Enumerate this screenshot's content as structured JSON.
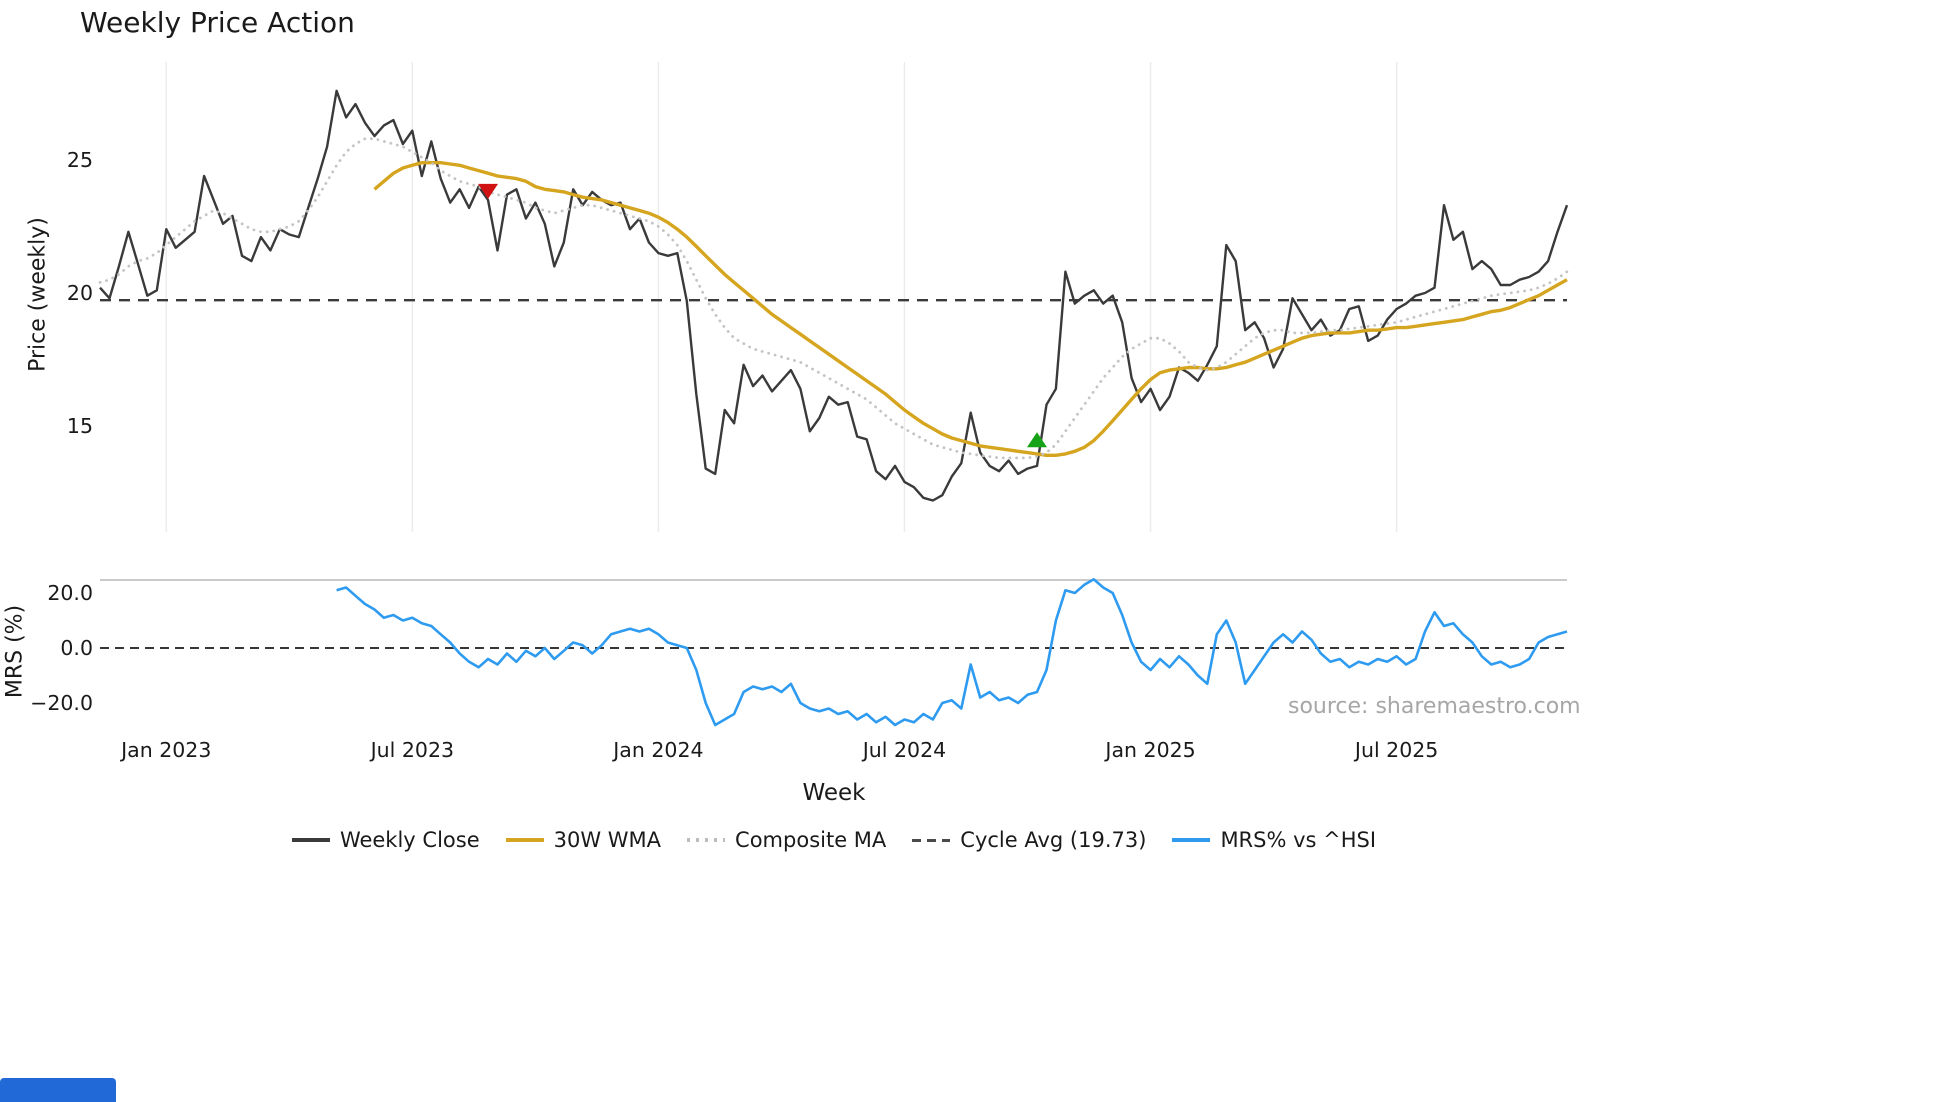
{
  "title": "Weekly Price Action",
  "source": "source: sharemaestro.com",
  "xaxis": {
    "label": "Week",
    "ticks": [
      {
        "week": 7,
        "label": "Jan 2023"
      },
      {
        "week": 33,
        "label": "Jul 2023"
      },
      {
        "week": 59,
        "label": "Jan 2024"
      },
      {
        "week": 85,
        "label": "Jul 2024"
      },
      {
        "week": 111,
        "label": "Jan 2025"
      },
      {
        "week": 137,
        "label": "Jul 2025"
      }
    ]
  },
  "legend": {
    "items": [
      {
        "label": "Weekly Close",
        "swatch": "line",
        "color": "#3a3a3a"
      },
      {
        "label": "30W WMA",
        "swatch": "line",
        "color": "#d6a51f"
      },
      {
        "label": "Composite MA",
        "swatch": "dotted",
        "color": "#bdbdbd"
      },
      {
        "label": "Cycle Avg (19.73)",
        "swatch": "dashed",
        "color": "#4a4a4a"
      },
      {
        "label": "MRS% vs ^HSI",
        "swatch": "line",
        "color": "#2e9bf0"
      }
    ]
  },
  "ui": {
    "bottom_left_fragment_color": "#2169d6",
    "gridline_color": "#ebebeb"
  },
  "chart_data": {
    "type": "line",
    "title": "Weekly Price Action",
    "x_unit": "week_index",
    "n_weeks": 156,
    "panels": [
      {
        "name": "price",
        "ylabel": "Price (weekly)",
        "ylim": [
          11.3,
          28.8
        ],
        "yticks": [
          {
            "value": 25,
            "label": "25"
          },
          {
            "value": 20,
            "label": "20"
          },
          {
            "value": 15,
            "label": "15"
          }
        ],
        "reference_lines": [
          {
            "name": "Cycle Avg (19.73)",
            "value": 19.73,
            "style": "dashed",
            "color": "#3a3a3a",
            "width": 2.4,
            "dash": "11 8"
          }
        ],
        "series": [
          {
            "name": "Weekly Close",
            "start_week": 0,
            "color": "#3a3a3a",
            "style": "solid",
            "width": 2.4,
            "values": [
              20.2,
              19.8,
              21.0,
              22.3,
              21.1,
              19.9,
              20.1,
              22.4,
              21.7,
              22.0,
              22.3,
              24.4,
              23.5,
              22.6,
              22.9,
              21.4,
              21.2,
              22.1,
              21.6,
              22.4,
              22.2,
              22.1,
              23.2,
              24.3,
              25.5,
              27.6,
              26.6,
              27.1,
              26.4,
              25.9,
              26.3,
              26.5,
              25.6,
              26.1,
              24.4,
              25.7,
              24.3,
              23.4,
              23.9,
              23.2,
              24.0,
              23.5,
              21.6,
              23.7,
              23.9,
              22.8,
              23.4,
              22.6,
              21.0,
              21.9,
              23.9,
              23.3,
              23.8,
              23.5,
              23.3,
              23.4,
              22.4,
              22.8,
              21.9,
              21.5,
              21.4,
              21.5,
              19.7,
              16.2,
              13.4,
              13.2,
              15.6,
              15.1,
              17.3,
              16.5,
              16.9,
              16.3,
              16.7,
              17.1,
              16.4,
              14.8,
              15.3,
              16.1,
              15.8,
              15.9,
              14.6,
              14.5,
              13.3,
              13.0,
              13.5,
              12.9,
              12.7,
              12.3,
              12.2,
              12.4,
              13.1,
              13.6,
              15.5,
              14.0,
              13.5,
              13.3,
              13.7,
              13.2,
              13.4,
              13.5,
              15.8,
              16.4,
              20.8,
              19.6,
              19.9,
              20.1,
              19.6,
              19.9,
              18.9,
              16.8,
              15.9,
              16.4,
              15.6,
              16.1,
              17.2,
              17.0,
              16.7,
              17.3,
              18.0,
              21.8,
              21.2,
              18.6,
              18.9,
              18.3,
              17.2,
              17.9,
              19.8,
              19.2,
              18.6,
              19.0,
              18.4,
              18.6,
              19.4,
              19.5,
              18.2,
              18.4,
              19.0,
              19.4,
              19.6,
              19.9,
              20.0,
              20.2,
              23.3,
              22.0,
              22.3,
              20.9,
              21.2,
              20.9,
              20.3,
              20.3,
              20.5,
              20.6,
              20.8,
              21.2,
              22.3,
              23.3
            ]
          },
          {
            "name": "30W WMA",
            "start_week": 29,
            "color": "#d6a51f",
            "style": "solid",
            "width": 3.4,
            "values": [
              23.9,
              24.2,
              24.5,
              24.7,
              24.8,
              24.9,
              24.9,
              24.9,
              24.85,
              24.8,
              24.7,
              24.6,
              24.5,
              24.4,
              24.35,
              24.3,
              24.2,
              24.0,
              23.9,
              23.85,
              23.8,
              23.7,
              23.6,
              23.55,
              23.5,
              23.4,
              23.3,
              23.2,
              23.1,
              23.0,
              22.85,
              22.65,
              22.4,
              22.1,
              21.75,
              21.4,
              21.05,
              20.7,
              20.4,
              20.1,
              19.8,
              19.5,
              19.2,
              18.95,
              18.7,
              18.45,
              18.2,
              17.95,
              17.7,
              17.45,
              17.2,
              16.95,
              16.7,
              16.45,
              16.2,
              15.9,
              15.6,
              15.35,
              15.1,
              14.9,
              14.7,
              14.55,
              14.45,
              14.35,
              14.25,
              14.2,
              14.15,
              14.1,
              14.05,
              14.0,
              13.95,
              13.9,
              13.9,
              13.95,
              14.05,
              14.2,
              14.45,
              14.8,
              15.2,
              15.6,
              16.0,
              16.4,
              16.75,
              17.0,
              17.1,
              17.15,
              17.2,
              17.2,
              17.15,
              17.15,
              17.2,
              17.3,
              17.4,
              17.55,
              17.7,
              17.85,
              18.0,
              18.15,
              18.3,
              18.4,
              18.45,
              18.5,
              18.5,
              18.5,
              18.55,
              18.6,
              18.6,
              18.65,
              18.7,
              18.7,
              18.75,
              18.8,
              18.85,
              18.9,
              18.95,
              19.0,
              19.1,
              19.2,
              19.3,
              19.35,
              19.45,
              19.6,
              19.75,
              19.9,
              20.1,
              20.3,
              20.5
            ]
          },
          {
            "name": "Composite MA",
            "start_week": 0,
            "color": "#c4c4c4",
            "style": "dotted",
            "width": 2.8,
            "values": [
              20.4,
              20.5,
              20.7,
              21.0,
              21.2,
              21.3,
              21.5,
              21.8,
              22.1,
              22.4,
              22.7,
              22.9,
              23.1,
              23.0,
              22.8,
              22.6,
              22.4,
              22.3,
              22.3,
              22.4,
              22.5,
              22.7,
              23.1,
              23.6,
              24.2,
              24.8,
              25.3,
              25.6,
              25.8,
              25.8,
              25.7,
              25.6,
              25.5,
              25.3,
              25.1,
              24.9,
              24.6,
              24.4,
              24.2,
              24.1,
              24.0,
              23.8,
              23.7,
              23.6,
              23.5,
              23.4,
              23.2,
              23.1,
              23.0,
              23.1,
              23.2,
              23.3,
              23.3,
              23.2,
              23.1,
              23.0,
              22.9,
              22.8,
              22.7,
              22.5,
              22.2,
              21.8,
              21.2,
              20.5,
              19.8,
              19.2,
              18.7,
              18.3,
              18.1,
              17.9,
              17.8,
              17.7,
              17.6,
              17.5,
              17.4,
              17.2,
              17.0,
              16.8,
              16.6,
              16.4,
              16.2,
              16.0,
              15.7,
              15.4,
              15.1,
              14.9,
              14.7,
              14.5,
              14.3,
              14.2,
              14.1,
              14.0,
              13.95,
              13.9,
              13.85,
              13.8,
              13.8,
              13.8,
              13.8,
              13.85,
              14.0,
              14.3,
              14.8,
              15.3,
              15.8,
              16.3,
              16.8,
              17.2,
              17.6,
              17.9,
              18.1,
              18.3,
              18.3,
              18.1,
              17.8,
              17.4,
              17.2,
              17.1,
              17.2,
              17.4,
              17.7,
              18.0,
              18.3,
              18.5,
              18.6,
              18.6,
              18.5,
              18.5,
              18.5,
              18.55,
              18.6,
              18.6,
              18.65,
              18.7,
              18.75,
              18.8,
              18.85,
              18.9,
              19.0,
              19.1,
              19.2,
              19.3,
              19.4,
              19.5,
              19.6,
              19.7,
              19.8,
              19.9,
              19.95,
              20.0,
              20.05,
              20.1,
              20.2,
              20.35,
              20.55,
              20.8
            ]
          }
        ],
        "markers": [
          {
            "name": "sell-signal",
            "shape": "triangle-down",
            "color": "#d01212",
            "week": 41,
            "value": 23.8
          },
          {
            "name": "buy-signal",
            "shape": "triangle-up",
            "color": "#17a317",
            "week": 99,
            "value": 14.5
          }
        ]
      },
      {
        "name": "mrs",
        "ylabel": "MRS (%)",
        "ylim": [
          -32,
          28
        ],
        "yticks": [
          {
            "value": 20,
            "label": "20.0"
          },
          {
            "value": 0,
            "label": "0.0"
          },
          {
            "value": -20,
            "label": "−20.0"
          }
        ],
        "reference_lines": [
          {
            "name": "zero",
            "value": 0,
            "style": "dashed",
            "color": "#1a1a1a",
            "width": 1.7,
            "dash": "9 6"
          }
        ],
        "series": [
          {
            "name": "MRS% vs ^HSI",
            "start_week": 25,
            "color": "#2e9bf0",
            "style": "solid",
            "width": 2.6,
            "values": [
              21,
              22,
              19,
              16,
              14,
              11,
              12,
              10,
              11,
              9,
              8,
              5,
              2,
              -2,
              -5,
              -7,
              -4,
              -6,
              -2,
              -5,
              -1,
              -3,
              0,
              -4,
              -1,
              2,
              1,
              -2,
              1,
              5,
              6,
              7,
              6,
              7,
              5,
              2,
              1,
              0,
              -8,
              -20,
              -28,
              -26,
              -24,
              -16,
              -14,
              -15,
              -14,
              -16,
              -13,
              -20,
              -22,
              -23,
              -22,
              -24,
              -23,
              -26,
              -24,
              -27,
              -25,
              -28,
              -26,
              -27,
              -24,
              -26,
              -20,
              -19,
              -22,
              -6,
              -18,
              -16,
              -19,
              -18,
              -20,
              -17,
              -16,
              -8,
              10,
              21,
              20,
              23,
              25,
              22,
              20,
              12,
              2,
              -5,
              -8,
              -4,
              -7,
              -3,
              -6,
              -10,
              -13,
              5,
              10,
              2,
              -13,
              -8,
              -3,
              2,
              5,
              2,
              6,
              3,
              -2,
              -5,
              -4,
              -7,
              -5,
              -6,
              -4,
              -5,
              -3,
              -6,
              -4,
              6,
              13,
              8,
              9,
              5,
              2,
              -3,
              -6,
              -5,
              -7,
              -6,
              -4,
              2,
              4,
              5,
              6
            ]
          }
        ]
      }
    ]
  }
}
